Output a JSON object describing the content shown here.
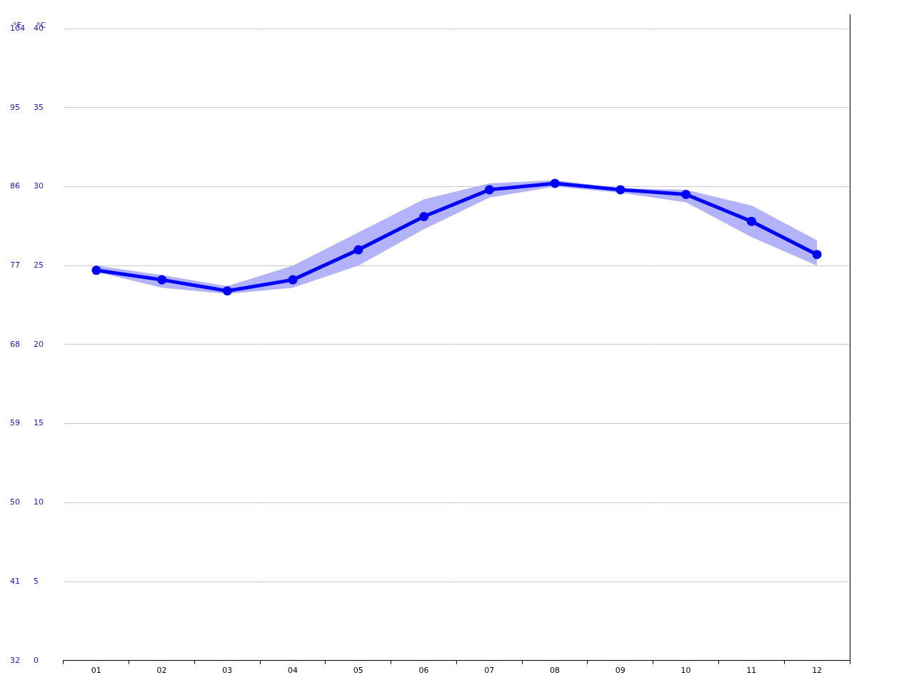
{
  "chart_data": {
    "type": "line",
    "y_label": "°C",
    "y2_label": "°F",
    "categories": [
      "01",
      "02",
      "03",
      "04",
      "05",
      "06",
      "07",
      "08",
      "09",
      "10",
      "11",
      "12"
    ],
    "values": [
      24.7,
      24.1,
      23.4,
      24.1,
      26.0,
      28.1,
      29.8,
      30.2,
      29.8,
      29.5,
      27.8,
      25.7
    ],
    "low": [
      24.6,
      23.6,
      23.2,
      23.6,
      25.0,
      27.3,
      29.3,
      30.0,
      29.6,
      29.0,
      26.8,
      25.0
    ],
    "high": [
      25.0,
      24.4,
      23.7,
      25.0,
      27.1,
      29.2,
      30.2,
      30.4,
      29.9,
      29.8,
      28.8,
      26.6
    ],
    "color": "#0000ff",
    "band_color": "#b3b3fa",
    "ylim": [
      0,
      40
    ],
    "yticks": [
      0,
      5,
      10,
      15,
      20,
      25,
      30,
      35,
      40
    ],
    "y2lim": [
      32,
      104
    ],
    "y2ticks": [
      32,
      41,
      50,
      59,
      68,
      77,
      86,
      95,
      104
    ],
    "grid": true,
    "marker": "circle",
    "line_style": "solid"
  }
}
